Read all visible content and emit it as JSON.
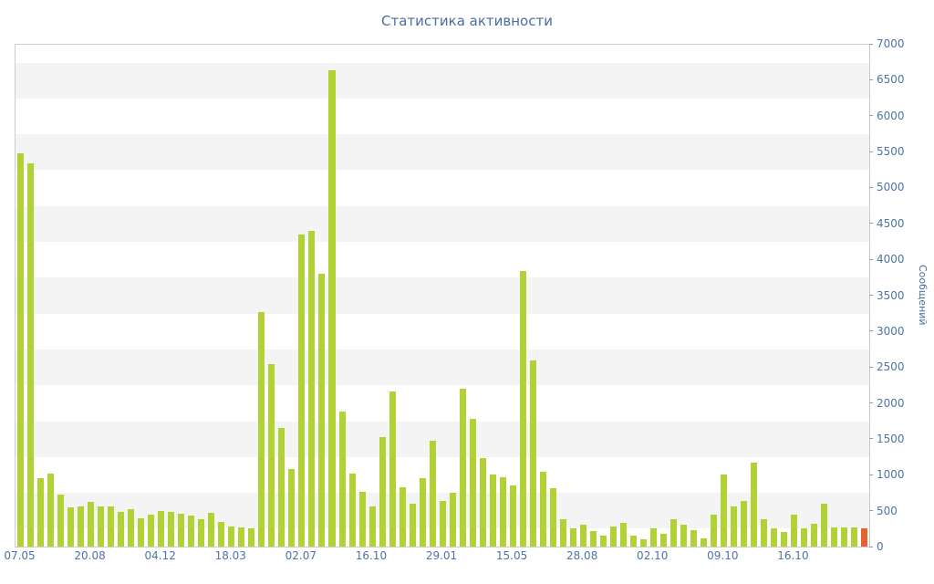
{
  "chart_data": {
    "type": "bar",
    "title": "Статистика активности",
    "xlabel": "",
    "ylabel": "Сообщений",
    "ylim": [
      0,
      7000
    ],
    "y_tick_interval": 500,
    "grid": "striped-bands",
    "legend": "none",
    "x_tick_labels": [
      "07.05",
      "20.08",
      "04.12",
      "18.03",
      "02.07",
      "16.10",
      "29.01",
      "15.05",
      "28.08",
      "02.10",
      "09.10",
      "16.10"
    ],
    "x_tick_indices": [
      0,
      7,
      14,
      21,
      28,
      35,
      42,
      49,
      56,
      63,
      70,
      77
    ],
    "values": [
      5480,
      5350,
      960,
      1020,
      730,
      545,
      560,
      620,
      560,
      555,
      480,
      520,
      400,
      440,
      500,
      490,
      455,
      435,
      380,
      470,
      350,
      280,
      270,
      255,
      3270,
      2550,
      1650,
      1080,
      4350,
      4400,
      3800,
      6650,
      1880,
      1020,
      760,
      560,
      1530,
      2170,
      830,
      600,
      950,
      1480,
      640,
      750,
      2200,
      1780,
      1230,
      1000,
      970,
      850,
      3850,
      2600,
      1050,
      820,
      380,
      250,
      300,
      220,
      150,
      280,
      330,
      150,
      100,
      260,
      180,
      380,
      300,
      230,
      120,
      450,
      1000,
      560,
      640,
      1170,
      380,
      250,
      200,
      440,
      250,
      320,
      600,
      270,
      265,
      270,
      250
    ],
    "highlight_last_bar": true,
    "colors": {
      "bar": "#b0d235",
      "bar_last": "#e8622d",
      "band": "#f4f4f4",
      "title_text": "#4a6d9c",
      "axis_text": "#4d74a8",
      "border": "#cccccc",
      "tick_mark": "#999999"
    }
  }
}
